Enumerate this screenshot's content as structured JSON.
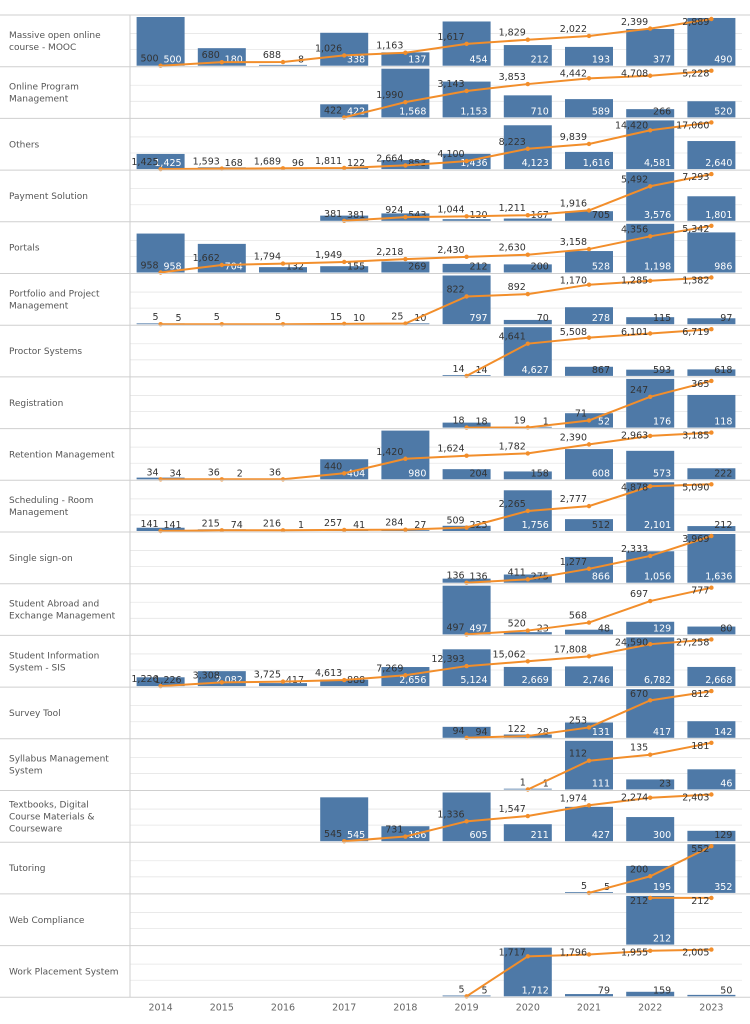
{
  "chart_data": {
    "type": "bar",
    "subtype": "small-multiples bar with cumulative line",
    "years": [
      "2014",
      "2015",
      "2016",
      "2017",
      "2018",
      "2019",
      "2020",
      "2021",
      "2022",
      "2023"
    ],
    "colors": {
      "bar": "#4e79a7",
      "line": "#f28e2b",
      "grid": "#e6e6e6",
      "divider": "#cfcfcf"
    },
    "grid": true,
    "rows": [
      {
        "label": "Massive open online course - MOOC",
        "bars": [
          500,
          180,
          8,
          338,
          137,
          454,
          212,
          193,
          377,
          490
        ],
        "line": [
          500,
          680,
          688,
          1026,
          1163,
          1617,
          1829,
          2022,
          2399,
          2889
        ]
      },
      {
        "label": "Online Program Management",
        "bars": [
          null,
          null,
          null,
          422,
          1568,
          1153,
          710,
          589,
          266,
          520
        ],
        "line": [
          null,
          null,
          null,
          422,
          1990,
          3143,
          3853,
          4442,
          4708,
          5228
        ]
      },
      {
        "label": "Others",
        "bars": [
          1425,
          168,
          96,
          122,
          853,
          1436,
          4123,
          1616,
          4581,
          2640
        ],
        "line": [
          1425,
          1593,
          1689,
          1811,
          2664,
          4100,
          8223,
          9839,
          14420,
          17060
        ]
      },
      {
        "label": "Payment Solution",
        "bars": [
          null,
          null,
          null,
          381,
          543,
          120,
          167,
          705,
          3576,
          1801
        ],
        "line": [
          null,
          null,
          null,
          381,
          924,
          1044,
          1211,
          1916,
          5492,
          7293
        ]
      },
      {
        "label": "Portals",
        "bars": [
          958,
          704,
          132,
          155,
          269,
          212,
          200,
          528,
          1198,
          986
        ],
        "line": [
          958,
          1662,
          1794,
          1949,
          2218,
          2430,
          2630,
          3158,
          4356,
          5342
        ]
      },
      {
        "label": "Portfolio and Project Management",
        "bars": [
          5,
          null,
          null,
          10,
          10,
          797,
          70,
          278,
          115,
          97
        ],
        "line": [
          5,
          5,
          5,
          15,
          25,
          822,
          892,
          1170,
          1285,
          1382
        ]
      },
      {
        "label": "Proctor Systems",
        "bars": [
          null,
          null,
          null,
          null,
          null,
          14,
          4627,
          867,
          593,
          618
        ],
        "line": [
          null,
          null,
          null,
          null,
          null,
          14,
          4641,
          5508,
          6101,
          6719
        ]
      },
      {
        "label": "Registration",
        "bars": [
          null,
          null,
          null,
          null,
          null,
          18,
          1,
          52,
          176,
          118
        ],
        "line": [
          null,
          null,
          null,
          null,
          null,
          18,
          19,
          71,
          247,
          365
        ]
      },
      {
        "label": "Retention Management",
        "bars": [
          34,
          2,
          null,
          404,
          980,
          204,
          158,
          608,
          573,
          222
        ],
        "line": [
          34,
          36,
          36,
          440,
          1420,
          1624,
          1782,
          2390,
          2963,
          3185
        ]
      },
      {
        "label": "Scheduling - Room Management",
        "bars": [
          141,
          74,
          1,
          41,
          27,
          225,
          1756,
          512,
          2101,
          212
        ],
        "line": [
          141,
          215,
          216,
          257,
          284,
          509,
          2265,
          2777,
          4878,
          5090
        ]
      },
      {
        "label": "Single sign-on",
        "bars": [
          null,
          null,
          null,
          null,
          null,
          136,
          275,
          866,
          1056,
          1636
        ],
        "line": [
          null,
          null,
          null,
          null,
          null,
          136,
          411,
          1277,
          2333,
          3969
        ]
      },
      {
        "label": "Student Abroad and Exchange Management",
        "bars": [
          null,
          null,
          null,
          null,
          null,
          497,
          23,
          48,
          129,
          80
        ],
        "line": [
          null,
          null,
          null,
          null,
          null,
          497,
          520,
          568,
          697,
          777
        ]
      },
      {
        "label": "Student Information System - SIS",
        "bars": [
          1226,
          2082,
          417,
          888,
          2656,
          5124,
          2669,
          2746,
          6782,
          2668
        ],
        "line": [
          1226,
          3308,
          3725,
          4613,
          7269,
          12393,
          15062,
          17808,
          24590,
          27258
        ]
      },
      {
        "label": "Survey Tool",
        "bars": [
          null,
          null,
          null,
          null,
          null,
          94,
          28,
          131,
          417,
          142
        ],
        "line": [
          null,
          null,
          null,
          null,
          null,
          94,
          122,
          253,
          670,
          812
        ]
      },
      {
        "label": "Syllabus Management System",
        "bars": [
          null,
          null,
          null,
          null,
          null,
          null,
          1,
          111,
          23,
          46
        ],
        "line": [
          null,
          null,
          null,
          null,
          null,
          null,
          1,
          112,
          135,
          181
        ]
      },
      {
        "label": "Textbooks, Digital Course Materials & Courseware",
        "bars": [
          null,
          null,
          null,
          545,
          186,
          605,
          211,
          427,
          300,
          129
        ],
        "line": [
          null,
          null,
          null,
          545,
          731,
          1336,
          1547,
          1974,
          2274,
          2403
        ]
      },
      {
        "label": "Tutoring",
        "bars": [
          null,
          null,
          null,
          null,
          null,
          null,
          null,
          5,
          195,
          352
        ],
        "line": [
          null,
          null,
          null,
          null,
          null,
          null,
          null,
          5,
          200,
          552
        ]
      },
      {
        "label": "Web Compliance",
        "bars": [
          null,
          null,
          null,
          null,
          null,
          null,
          null,
          null,
          212,
          null
        ],
        "line": [
          null,
          null,
          null,
          null,
          null,
          null,
          null,
          null,
          212,
          212
        ]
      },
      {
        "label": "Work Placement System",
        "bars": [
          null,
          null,
          null,
          null,
          null,
          5,
          1712,
          79,
          159,
          50
        ],
        "line": [
          null,
          null,
          null,
          null,
          null,
          5,
          1717,
          1796,
          1955,
          2005
        ]
      }
    ]
  }
}
